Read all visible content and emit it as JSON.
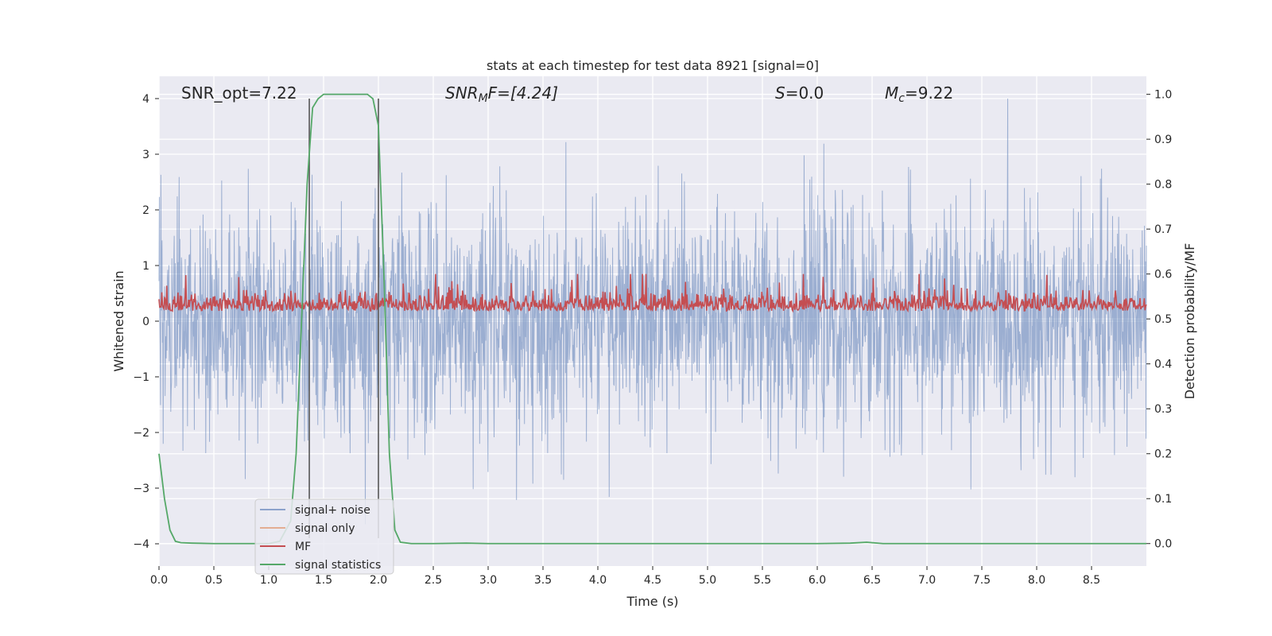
{
  "chart_data": {
    "type": "line",
    "title": "stats at each timestep for test data 8921 [signal=0]",
    "xlabel": "Time (s)",
    "ylabel": "Whitened strain",
    "ylabel_right": "Detection probability/MF",
    "xlim": [
      0,
      9.0
    ],
    "ylim": [
      -4.4,
      4.4
    ],
    "ylim_right": [
      -0.05,
      1.04
    ],
    "x_ticks": [
      "0.0",
      "0.5",
      "1.0",
      "1.5",
      "2.0",
      "2.5",
      "3.0",
      "3.5",
      "4.0",
      "4.5",
      "5.0",
      "5.5",
      "6.0",
      "6.5",
      "7.0",
      "7.5",
      "8.0",
      "8.5"
    ],
    "y_ticks": [
      "−4",
      "−3",
      "−2",
      "−1",
      "0",
      "1",
      "2",
      "3",
      "4"
    ],
    "y_ticks_right": [
      "0.0",
      "0.1",
      "0.2",
      "0.3",
      "0.4",
      "0.5",
      "0.6",
      "0.7",
      "0.8",
      "0.9",
      "1.0"
    ],
    "grid": true,
    "legend_position": "lower-left",
    "annotations": {
      "snr_opt": "SNR_opt=7.22",
      "snr_mf_label": "SNR",
      "snr_mf_sub": "M",
      "snr_mf_rest": "F=[4.24]",
      "s_label": "S",
      "s_rest": "=0.0",
      "mc_label": "M",
      "mc_sub": "c",
      "mc_rest": "=9.22"
    },
    "vertical_lines": [
      1.37,
      2.0
    ],
    "series": [
      {
        "name": "signal+ noise",
        "color": "#4c72b0",
        "description_values": {
          "mean": 0,
          "std": 1.0,
          "range": [
            -3.9,
            4.0
          ]
        }
      },
      {
        "name": "signal only",
        "color": "#dd8452",
        "values": []
      },
      {
        "name": "MF",
        "color": "#c44e52",
        "description_values": {
          "baseline": 0.53,
          "range": [
            0.5,
            0.6
          ]
        }
      },
      {
        "name": "signal statistics",
        "color": "#55a868",
        "x": [
          0.0,
          0.05,
          0.1,
          0.15,
          0.2,
          0.3,
          0.5,
          0.8,
          1.0,
          1.1,
          1.2,
          1.25,
          1.3,
          1.35,
          1.4,
          1.45,
          1.5,
          1.6,
          1.7,
          1.8,
          1.9,
          1.95,
          2.0,
          2.05,
          2.1,
          2.15,
          2.2,
          2.3,
          2.5,
          2.8,
          3.0,
          4.0,
          5.0,
          6.0,
          6.3,
          6.45,
          6.6,
          7.0,
          8.0,
          9.0
        ],
        "y": [
          0.2,
          0.1,
          0.03,
          0.005,
          0.002,
          0.001,
          0.0,
          0.0,
          0.0,
          0.005,
          0.05,
          0.2,
          0.5,
          0.8,
          0.97,
          0.99,
          1.0,
          1.0,
          1.0,
          1.0,
          1.0,
          0.99,
          0.93,
          0.6,
          0.2,
          0.03,
          0.003,
          0.0,
          0.0,
          0.001,
          0.0,
          0.0,
          0.0,
          0.0,
          0.001,
          0.003,
          0.0,
          0.0,
          0.0,
          0.0
        ]
      }
    ]
  }
}
